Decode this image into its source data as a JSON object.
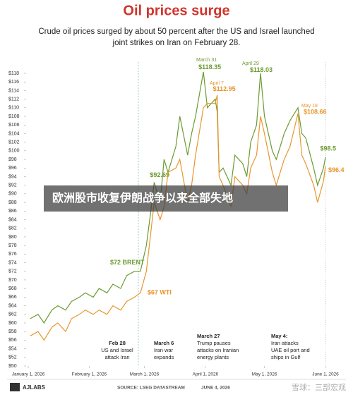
{
  "chart_data": {
    "type": "line",
    "title": "Oil prices surge",
    "subtitle": [
      "Crude oil prices surged by about 50 percent after the US and Israel launched",
      "joint strikes on Iran on February 28."
    ],
    "x": [
      "2026-01-02",
      "2026-01-06",
      "2026-01-09",
      "2026-01-13",
      "2026-01-16",
      "2026-01-20",
      "2026-01-23",
      "2026-01-27",
      "2026-01-30",
      "2026-02-03",
      "2026-02-06",
      "2026-02-10",
      "2026-02-13",
      "2026-02-17",
      "2026-02-20",
      "2026-02-24",
      "2026-02-27",
      "2026-03-02",
      "2026-03-04",
      "2026-03-06",
      "2026-03-09",
      "2026-03-11",
      "2026-03-13",
      "2026-03-17",
      "2026-03-19",
      "2026-03-23",
      "2026-03-25",
      "2026-03-27",
      "2026-03-31",
      "2026-04-02",
      "2026-04-06",
      "2026-04-07",
      "2026-04-08",
      "2026-04-10",
      "2026-04-14",
      "2026-04-16",
      "2026-04-20",
      "2026-04-22",
      "2026-04-24",
      "2026-04-27",
      "2026-04-29",
      "2026-05-01",
      "2026-05-05",
      "2026-05-07",
      "2026-05-11",
      "2026-05-14",
      "2026-05-18",
      "2026-05-20",
      "2026-05-22",
      "2026-05-26",
      "2026-05-28",
      "2026-05-31",
      "2026-06-01"
    ],
    "series": [
      {
        "name": "BRENT",
        "color": "#6b9b2f",
        "values": [
          61,
          62,
          60,
          63,
          64,
          63,
          65,
          66,
          67,
          66,
          68,
          67,
          69,
          68,
          71,
          72,
          72,
          78,
          85,
          92.69,
          88,
          98,
          95,
          101,
          108,
          99,
          104,
          108,
          118.35,
          110,
          112,
          109,
          95,
          96,
          92,
          99,
          97,
          94,
          102,
          106,
          118.03,
          108,
          100,
          98,
          104,
          107,
          110,
          104,
          103,
          96,
          92,
          96,
          98.5
        ],
        "value_labels": [
          null,
          null,
          null,
          null,
          null,
          null,
          null,
          null,
          null,
          null,
          null,
          null,
          null,
          null,
          null,
          "$72 BRENT",
          null,
          null,
          null,
          "$92.69",
          null,
          null,
          null,
          null,
          null,
          null,
          null,
          null,
          "$118.35",
          null,
          null,
          null,
          null,
          null,
          null,
          null,
          null,
          null,
          null,
          null,
          "$118.03",
          null,
          null,
          null,
          null,
          null,
          null,
          null,
          null,
          null,
          null,
          null,
          "$98.5"
        ]
      },
      {
        "name": "WTI",
        "color": "#e8962e",
        "values": [
          57,
          58,
          56,
          59,
          60,
          58,
          61,
          62,
          63,
          62,
          63,
          62,
          64,
          63,
          65,
          66,
          67,
          72,
          80,
          88,
          84,
          87,
          95,
          96,
          98,
          88,
          92,
          99,
          110,
          111,
          111,
          112.95,
          94,
          92,
          87,
          94,
          92,
          90,
          96,
          99,
          108,
          104,
          95,
          92,
          98,
          101,
          108.66,
          99,
          97,
          92,
          88,
          93,
          96.4
        ],
        "value_labels": [
          null,
          null,
          null,
          null,
          null,
          null,
          null,
          null,
          null,
          null,
          null,
          null,
          null,
          null,
          null,
          null,
          "$67 WTI",
          null,
          null,
          null,
          null,
          null,
          null,
          null,
          null,
          null,
          null,
          null,
          null,
          null,
          null,
          "$112.95",
          null,
          null,
          null,
          null,
          null,
          null,
          null,
          null,
          null,
          null,
          null,
          null,
          null,
          null,
          "$108.66",
          null,
          null,
          null,
          null,
          null,
          "$96.4"
        ]
      }
    ],
    "annotations": [
      "March 31",
      "April 7",
      "April 29",
      "May 18"
    ],
    "events": [
      {
        "lines": [
          "Feb 28",
          "US and Israel",
          "attack Iran"
        ]
      },
      {
        "lines": [
          "March 6",
          "Iran war",
          "expands"
        ]
      },
      {
        "lines": [
          "March 27",
          "Trump pauses",
          "attacks on Iranian",
          "energy plants"
        ]
      },
      {
        "lines": [
          "May 4:",
          "Iran attacks",
          "UAE oil port and",
          "ships in Gulf"
        ]
      }
    ],
    "xlim": [
      "2026-01-01",
      "2026-06-01"
    ],
    "xticks": [
      {
        "value": "2026-01-01",
        "label": "January 1, 2026"
      },
      {
        "value": "2026-02-01",
        "label": "February 1, 2026"
      },
      {
        "value": "2026-03-01",
        "label": "March 1, 2026"
      },
      {
        "value": "2026-04-01",
        "label": "April 1, 2026"
      },
      {
        "value": "2026-05-01",
        "label": "May 1, 2026"
      },
      {
        "value": "2026-06-01",
        "label": "June 1, 2026"
      }
    ],
    "ylim": [
      50,
      118
    ],
    "yticks": [
      {
        "value": 50,
        "label": "$50"
      },
      {
        "value": 52,
        "label": "$52"
      },
      {
        "value": 54,
        "label": "$54"
      },
      {
        "value": 56,
        "label": "$56"
      },
      {
        "value": 58,
        "label": "$58"
      },
      {
        "value": 60,
        "label": "$60"
      },
      {
        "value": 62,
        "label": "$62"
      },
      {
        "value": 64,
        "label": "$64"
      },
      {
        "value": 66,
        "label": "$66"
      },
      {
        "value": 68,
        "label": "$68"
      },
      {
        "value": 70,
        "label": "$70"
      },
      {
        "value": 72,
        "label": "$72"
      },
      {
        "value": 74,
        "label": "$74"
      },
      {
        "value": 76,
        "label": "$76"
      },
      {
        "value": 78,
        "label": "$78"
      },
      {
        "value": 80,
        "label": "$80"
      },
      {
        "value": 82,
        "label": "$82"
      },
      {
        "value": 84,
        "label": "$84"
      },
      {
        "value": 86,
        "label": "$86"
      },
      {
        "value": 88,
        "label": "$88"
      },
      {
        "value": 90,
        "label": "$90"
      },
      {
        "value": 92,
        "label": "$92"
      },
      {
        "value": 94,
        "label": "$94"
      },
      {
        "value": 96,
        "label": "$96"
      },
      {
        "value": 98,
        "label": "$98"
      },
      {
        "value": 100,
        "label": "$100"
      },
      {
        "value": 102,
        "label": "$102"
      },
      {
        "value": 104,
        "label": "$104"
      },
      {
        "value": 106,
        "label": "$106"
      },
      {
        "value": 108,
        "label": "$108"
      },
      {
        "value": 110,
        "label": "$110"
      },
      {
        "value": 112,
        "label": "$112"
      },
      {
        "value": 114,
        "label": "$114"
      },
      {
        "value": 116,
        "label": "$116"
      },
      {
        "value": 118,
        "label": "$118"
      }
    ],
    "grid": false,
    "banner": "欧洲股市收复伊朗战争以来全部失地",
    "logo": "AJLABS",
    "source": "SOURCE: LSEG DATASTREAM",
    "date": "JUNE 4, 2026",
    "watermark": "雪球：三部宏观"
  }
}
